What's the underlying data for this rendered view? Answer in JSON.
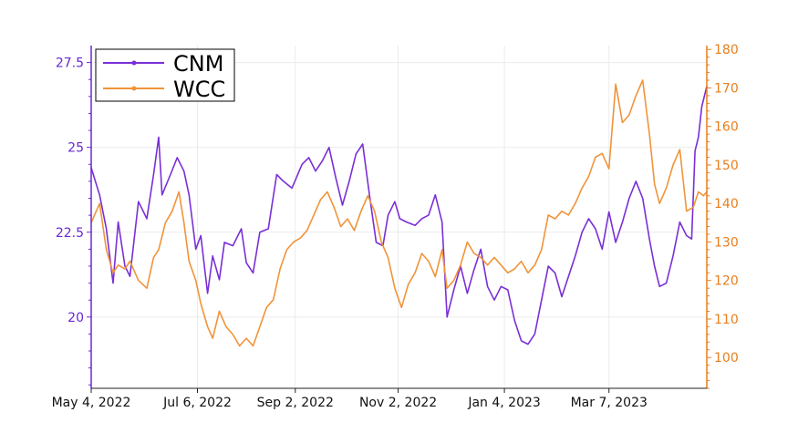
{
  "chart_data": {
    "type": "line",
    "title": "",
    "xlabel": "",
    "ylabel": "",
    "x_tick_labels": [
      "May 4, 2022",
      "Jul 6, 2022",
      "Sep 2, 2022",
      "Nov 2, 2022",
      "Jan 4, 2023",
      "Mar 7, 2023"
    ],
    "x_range": [
      "2022-05-04",
      "2023-05-04"
    ],
    "y_left": {
      "ticks": [
        20,
        22.5,
        25,
        27.5
      ],
      "tick_labels": [
        "20",
        "22.5",
        "25",
        "27.5"
      ],
      "lim": [
        17.9,
        28.0
      ],
      "color": "#6a28d1"
    },
    "y_right": {
      "ticks": [
        100,
        110,
        120,
        130,
        140,
        150,
        160,
        170,
        180
      ],
      "tick_labels": [
        "100",
        "110",
        "120",
        "130",
        "140",
        "150",
        "160",
        "170",
        "180"
      ],
      "lim": [
        92,
        181
      ],
      "color": "#e87e1c"
    },
    "grid": true,
    "legend_position": "top-left",
    "series": [
      {
        "name": "CNM",
        "axis": "left",
        "color": "#7a2fd6",
        "points": [
          [
            "2022-05-04",
            24.4
          ],
          [
            "2022-05-09",
            23.6
          ],
          [
            "2022-05-13",
            22.6
          ],
          [
            "2022-05-17",
            21.0
          ],
          [
            "2022-05-20",
            22.8
          ],
          [
            "2022-05-24",
            21.5
          ],
          [
            "2022-05-27",
            21.2
          ],
          [
            "2022-06-01",
            23.4
          ],
          [
            "2022-06-06",
            22.9
          ],
          [
            "2022-06-10",
            24.2
          ],
          [
            "2022-06-13",
            25.3
          ],
          [
            "2022-06-15",
            23.6
          ],
          [
            "2022-06-20",
            24.2
          ],
          [
            "2022-06-24",
            24.7
          ],
          [
            "2022-06-28",
            24.3
          ],
          [
            "2022-07-01",
            23.6
          ],
          [
            "2022-07-05",
            22.0
          ],
          [
            "2022-07-08",
            22.4
          ],
          [
            "2022-07-12",
            20.7
          ],
          [
            "2022-07-15",
            21.8
          ],
          [
            "2022-07-19",
            21.1
          ],
          [
            "2022-07-22",
            22.2
          ],
          [
            "2022-07-27",
            22.1
          ],
          [
            "2022-08-01",
            22.6
          ],
          [
            "2022-08-04",
            21.6
          ],
          [
            "2022-08-08",
            21.3
          ],
          [
            "2022-08-12",
            22.5
          ],
          [
            "2022-08-17",
            22.6
          ],
          [
            "2022-08-22",
            24.2
          ],
          [
            "2022-08-26",
            24.0
          ],
          [
            "2022-08-31",
            23.8
          ],
          [
            "2022-09-06",
            24.5
          ],
          [
            "2022-09-10",
            24.7
          ],
          [
            "2022-09-14",
            24.3
          ],
          [
            "2022-09-18",
            24.6
          ],
          [
            "2022-09-22",
            25.0
          ],
          [
            "2022-09-26",
            24.1
          ],
          [
            "2022-09-30",
            23.3
          ],
          [
            "2022-10-04",
            24.0
          ],
          [
            "2022-10-08",
            24.8
          ],
          [
            "2022-10-12",
            25.1
          ],
          [
            "2022-10-16",
            23.6
          ],
          [
            "2022-10-20",
            22.2
          ],
          [
            "2022-10-24",
            22.1
          ],
          [
            "2022-10-27",
            23.0
          ],
          [
            "2022-10-31",
            23.4
          ],
          [
            "2022-11-03",
            22.9
          ],
          [
            "2022-11-07",
            22.8
          ],
          [
            "2022-11-12",
            22.7
          ],
          [
            "2022-11-16",
            22.9
          ],
          [
            "2022-11-20",
            23.0
          ],
          [
            "2022-11-24",
            23.6
          ],
          [
            "2022-11-28",
            22.8
          ],
          [
            "2022-12-01",
            20.0
          ],
          [
            "2022-12-05",
            20.8
          ],
          [
            "2022-12-09",
            21.5
          ],
          [
            "2022-12-13",
            20.7
          ],
          [
            "2022-12-17",
            21.4
          ],
          [
            "2022-12-21",
            22.0
          ],
          [
            "2022-12-25",
            20.9
          ],
          [
            "2022-12-29",
            20.5
          ],
          [
            "2023-01-02",
            20.9
          ],
          [
            "2023-01-06",
            20.8
          ],
          [
            "2023-01-10",
            19.9
          ],
          [
            "2023-01-14",
            19.3
          ],
          [
            "2023-01-18",
            19.2
          ],
          [
            "2023-01-22",
            19.5
          ],
          [
            "2023-01-26",
            20.5
          ],
          [
            "2023-01-30",
            21.5
          ],
          [
            "2023-02-03",
            21.3
          ],
          [
            "2023-02-07",
            20.6
          ],
          [
            "2023-02-11",
            21.2
          ],
          [
            "2023-02-15",
            21.8
          ],
          [
            "2023-02-19",
            22.5
          ],
          [
            "2023-02-23",
            22.9
          ],
          [
            "2023-02-27",
            22.6
          ],
          [
            "2023-03-03",
            22.0
          ],
          [
            "2023-03-07",
            23.1
          ],
          [
            "2023-03-11",
            22.2
          ],
          [
            "2023-03-15",
            22.8
          ],
          [
            "2023-03-19",
            23.5
          ],
          [
            "2023-03-23",
            24.0
          ],
          [
            "2023-03-27",
            23.5
          ],
          [
            "2023-03-31",
            22.3
          ],
          [
            "2023-04-03",
            21.5
          ],
          [
            "2023-04-06",
            20.9
          ],
          [
            "2023-04-10",
            21.0
          ],
          [
            "2023-04-14",
            21.8
          ],
          [
            "2023-04-18",
            22.8
          ],
          [
            "2023-04-22",
            22.4
          ],
          [
            "2023-04-25",
            22.3
          ],
          [
            "2023-04-27",
            24.9
          ],
          [
            "2023-04-29",
            25.3
          ],
          [
            "2023-05-01",
            26.2
          ],
          [
            "2023-05-04",
            26.8
          ]
        ]
      },
      {
        "name": "WCC",
        "axis": "right",
        "color": "#f0943a",
        "points": [
          [
            "2022-05-04",
            135
          ],
          [
            "2022-05-09",
            140
          ],
          [
            "2022-05-13",
            128
          ],
          [
            "2022-05-17",
            122
          ],
          [
            "2022-05-20",
            124
          ],
          [
            "2022-05-24",
            123
          ],
          [
            "2022-05-27",
            125
          ],
          [
            "2022-06-01",
            120
          ],
          [
            "2022-06-06",
            118
          ],
          [
            "2022-06-10",
            126
          ],
          [
            "2022-06-13",
            128
          ],
          [
            "2022-06-17",
            135
          ],
          [
            "2022-06-21",
            138
          ],
          [
            "2022-06-25",
            143
          ],
          [
            "2022-06-28",
            135
          ],
          [
            "2022-07-01",
            125
          ],
          [
            "2022-07-05",
            120
          ],
          [
            "2022-07-08",
            114
          ],
          [
            "2022-07-12",
            108
          ],
          [
            "2022-07-15",
            105
          ],
          [
            "2022-07-19",
            112
          ],
          [
            "2022-07-23",
            108
          ],
          [
            "2022-07-27",
            106
          ],
          [
            "2022-07-31",
            103
          ],
          [
            "2022-08-04",
            105
          ],
          [
            "2022-08-08",
            103
          ],
          [
            "2022-08-12",
            108
          ],
          [
            "2022-08-16",
            113
          ],
          [
            "2022-08-20",
            115
          ],
          [
            "2022-08-24",
            123
          ],
          [
            "2022-08-28",
            128
          ],
          [
            "2022-09-01",
            130
          ],
          [
            "2022-09-05",
            131
          ],
          [
            "2022-09-09",
            133
          ],
          [
            "2022-09-13",
            137
          ],
          [
            "2022-09-17",
            141
          ],
          [
            "2022-09-21",
            143
          ],
          [
            "2022-09-25",
            139
          ],
          [
            "2022-09-29",
            134
          ],
          [
            "2022-10-03",
            136
          ],
          [
            "2022-10-07",
            133
          ],
          [
            "2022-10-11",
            138
          ],
          [
            "2022-10-15",
            142
          ],
          [
            "2022-10-19",
            138
          ],
          [
            "2022-10-23",
            130
          ],
          [
            "2022-10-27",
            126
          ],
          [
            "2022-10-31",
            118
          ],
          [
            "2022-11-04",
            113
          ],
          [
            "2022-11-08",
            119
          ],
          [
            "2022-11-12",
            122
          ],
          [
            "2022-11-16",
            127
          ],
          [
            "2022-11-20",
            125
          ],
          [
            "2022-11-24",
            121
          ],
          [
            "2022-11-28",
            128
          ],
          [
            "2022-12-01",
            118
          ],
          [
            "2022-12-05",
            120
          ],
          [
            "2022-12-09",
            124
          ],
          [
            "2022-12-13",
            130
          ],
          [
            "2022-12-17",
            127
          ],
          [
            "2022-12-21",
            126
          ],
          [
            "2022-12-25",
            124
          ],
          [
            "2022-12-29",
            126
          ],
          [
            "2023-01-02",
            124
          ],
          [
            "2023-01-06",
            122
          ],
          [
            "2023-01-10",
            123
          ],
          [
            "2023-01-14",
            125
          ],
          [
            "2023-01-18",
            122
          ],
          [
            "2023-01-22",
            124
          ],
          [
            "2023-01-26",
            128
          ],
          [
            "2023-01-30",
            137
          ],
          [
            "2023-02-03",
            136
          ],
          [
            "2023-02-07",
            138
          ],
          [
            "2023-02-11",
            137
          ],
          [
            "2023-02-15",
            140
          ],
          [
            "2023-02-19",
            144
          ],
          [
            "2023-02-23",
            147
          ],
          [
            "2023-02-27",
            152
          ],
          [
            "2023-03-03",
            153
          ],
          [
            "2023-03-07",
            149
          ],
          [
            "2023-03-11",
            171
          ],
          [
            "2023-03-15",
            161
          ],
          [
            "2023-03-19",
            163
          ],
          [
            "2023-03-23",
            168
          ],
          [
            "2023-03-27",
            172
          ],
          [
            "2023-03-31",
            158
          ],
          [
            "2023-04-03",
            145
          ],
          [
            "2023-04-06",
            140
          ],
          [
            "2023-04-10",
            144
          ],
          [
            "2023-04-14",
            150
          ],
          [
            "2023-04-18",
            154
          ],
          [
            "2023-04-22",
            138
          ],
          [
            "2023-04-26",
            139
          ],
          [
            "2023-04-29",
            143
          ],
          [
            "2023-05-02",
            142
          ],
          [
            "2023-05-04",
            143
          ]
        ]
      }
    ]
  }
}
